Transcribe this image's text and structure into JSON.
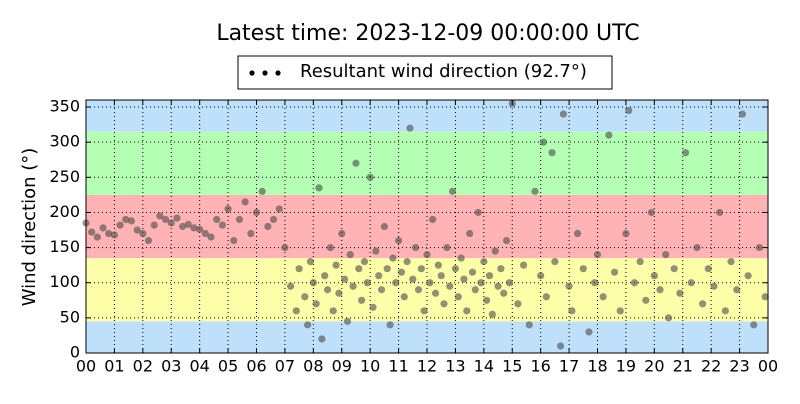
{
  "chart_data": {
    "type": "scatter",
    "title": "Latest time: 2023-12-09 00:00:00 UTC",
    "ylabel": "Wind direction (°)",
    "xlim": [
      0,
      24
    ],
    "ylim": [
      0,
      360
    ],
    "xticks": [
      {
        "value": 0,
        "label": "00"
      },
      {
        "value": 1,
        "label": "01"
      },
      {
        "value": 2,
        "label": "02"
      },
      {
        "value": 3,
        "label": "03"
      },
      {
        "value": 4,
        "label": "04"
      },
      {
        "value": 5,
        "label": "05"
      },
      {
        "value": 6,
        "label": "06"
      },
      {
        "value": 7,
        "label": "07"
      },
      {
        "value": 8,
        "label": "08"
      },
      {
        "value": 9,
        "label": "09"
      },
      {
        "value": 10,
        "label": "10"
      },
      {
        "value": 11,
        "label": "11"
      },
      {
        "value": 12,
        "label": "12"
      },
      {
        "value": 13,
        "label": "13"
      },
      {
        "value": 14,
        "label": "14"
      },
      {
        "value": 15,
        "label": "15"
      },
      {
        "value": 16,
        "label": "16"
      },
      {
        "value": 17,
        "label": "17"
      },
      {
        "value": 18,
        "label": "18"
      },
      {
        "value": 19,
        "label": "19"
      },
      {
        "value": 20,
        "label": "20"
      },
      {
        "value": 21,
        "label": "21"
      },
      {
        "value": 22,
        "label": "22"
      },
      {
        "value": 23,
        "label": "23"
      },
      {
        "value": 24,
        "label": "00"
      }
    ],
    "yticks": [
      0,
      50,
      100,
      150,
      200,
      250,
      300,
      350
    ],
    "grid": true,
    "legend": "top",
    "bands": [
      {
        "from": 0,
        "to": 45,
        "color": "#bfe0fb"
      },
      {
        "from": 45,
        "to": 135,
        "color": "#ffffaa"
      },
      {
        "from": 135,
        "to": 225,
        "color": "#ffb3b5"
      },
      {
        "from": 225,
        "to": 315,
        "color": "#b5ffb5"
      },
      {
        "from": 315,
        "to": 360,
        "color": "#bfe0fb"
      }
    ],
    "series": [
      {
        "name": "Resultant wind direction (92.7°)",
        "color": "#4a4a4a",
        "x": [
          0,
          0.2,
          0.4,
          0.6,
          0.8,
          1.0,
          1.2,
          1.4,
          1.6,
          1.8,
          2.0,
          2.2,
          2.4,
          2.6,
          2.8,
          3.0,
          3.2,
          3.4,
          3.6,
          3.8,
          4.0,
          4.2,
          4.4,
          4.6,
          4.8,
          5.0,
          5.2,
          5.4,
          5.6,
          5.8,
          6.0,
          6.2,
          6.4,
          6.6,
          6.8,
          7.0,
          7.2,
          7.4,
          7.5,
          7.7,
          7.8,
          7.9,
          8.0,
          8.1,
          8.2,
          8.3,
          8.4,
          8.5,
          8.6,
          8.7,
          8.8,
          8.9,
          9.0,
          9.1,
          9.2,
          9.3,
          9.4,
          9.5,
          9.6,
          9.7,
          9.8,
          9.9,
          10.0,
          10.1,
          10.2,
          10.3,
          10.4,
          10.5,
          10.6,
          10.7,
          10.8,
          10.9,
          11.0,
          11.1,
          11.2,
          11.3,
          11.4,
          11.5,
          11.6,
          11.7,
          11.8,
          11.9,
          12.0,
          12.1,
          12.2,
          12.3,
          12.4,
          12.5,
          12.6,
          12.7,
          12.8,
          12.9,
          13.0,
          13.1,
          13.2,
          13.3,
          13.4,
          13.5,
          13.6,
          13.7,
          13.8,
          13.9,
          14.0,
          14.1,
          14.2,
          14.3,
          14.4,
          14.5,
          14.6,
          14.7,
          14.8,
          14.9,
          15.0,
          15.2,
          15.4,
          15.6,
          15.8,
          16.0,
          16.1,
          16.2,
          16.4,
          16.5,
          16.7,
          16.8,
          17.0,
          17.1,
          17.3,
          17.5,
          17.7,
          17.9,
          18.0,
          18.2,
          18.4,
          18.6,
          18.8,
          19.0,
          19.1,
          19.3,
          19.5,
          19.7,
          19.9,
          20.0,
          20.2,
          20.4,
          20.5,
          20.7,
          20.9,
          21.1,
          21.3,
          21.5,
          21.7,
          21.9,
          22.1,
          22.3,
          22.5,
          22.7,
          22.9,
          23.1,
          23.3,
          23.5,
          23.7,
          23.9
        ],
        "values": [
          185,
          172,
          165,
          178,
          170,
          168,
          182,
          190,
          188,
          175,
          170,
          160,
          182,
          195,
          190,
          185,
          192,
          180,
          183,
          178,
          176,
          170,
          165,
          190,
          182,
          205,
          160,
          190,
          215,
          170,
          200,
          230,
          180,
          190,
          205,
          150,
          95,
          60,
          120,
          80,
          40,
          130,
          100,
          70,
          235,
          20,
          110,
          90,
          150,
          60,
          125,
          85,
          170,
          105,
          45,
          140,
          95,
          270,
          120,
          75,
          130,
          100,
          250,
          65,
          145,
          110,
          90,
          180,
          120,
          40,
          135,
          100,
          160,
          115,
          80,
          130,
          320,
          105,
          150,
          90,
          120,
          60,
          140,
          100,
          190,
          85,
          125,
          110,
          70,
          150,
          95,
          230,
          120,
          80,
          135,
          105,
          60,
          170,
          115,
          90,
          200,
          100,
          130,
          75,
          110,
          55,
          145,
          95,
          120,
          85,
          160,
          100,
          355,
          70,
          125,
          40,
          230,
          110,
          300,
          80,
          285,
          130,
          10,
          340,
          95,
          60,
          170,
          120,
          30,
          100,
          140,
          80,
          310,
          115,
          60,
          170,
          345,
          100,
          130,
          75,
          200,
          110,
          90,
          140,
          50,
          120,
          85,
          285,
          100,
          150,
          70,
          120,
          95,
          200,
          60,
          130,
          90,
          340,
          110,
          40,
          150,
          80
        ]
      }
    ]
  }
}
